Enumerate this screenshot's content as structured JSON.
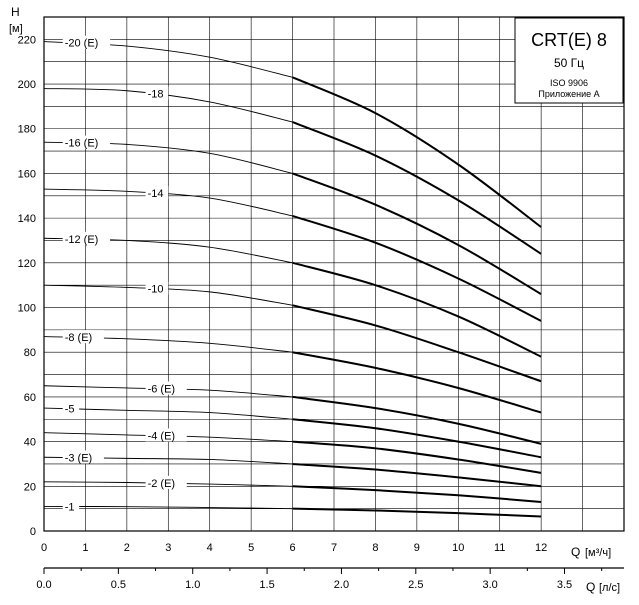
{
  "chart_data": {
    "type": "line",
    "title": "CRT(E) 8",
    "subtitle": "50 Гц",
    "notes": [
      "ISO 9906",
      "Приложение А"
    ],
    "ylabel": "H",
    "yunit": "[м]",
    "xlabel": "Q",
    "xunit": "[м³/ч]",
    "x2label": "Q",
    "x2unit": "[л/с]",
    "xlim": [
      0,
      14
    ],
    "ylim": [
      0,
      230
    ],
    "x2lim": [
      0.0,
      3.9
    ],
    "grid": true,
    "x_ticks": [
      "0",
      "1",
      "2",
      "3",
      "4",
      "5",
      "6",
      "7",
      "8",
      "9",
      "10",
      "11",
      "12"
    ],
    "y_ticks": [
      "0",
      "20",
      "40",
      "60",
      "80",
      "100",
      "120",
      "140",
      "160",
      "180",
      "200",
      "220"
    ],
    "x2_ticks": [
      "0.0",
      "0.5",
      "1.0",
      "1.5",
      "2.0",
      "2.5",
      "3.0",
      "3.5"
    ],
    "operating_range_start": 6,
    "series": [
      {
        "name": "-20 (E)",
        "label_at": 0.5,
        "x": [
          0,
          2,
          4,
          6,
          8,
          10,
          12
        ],
        "y": [
          219,
          217,
          212,
          203,
          187,
          164,
          136
        ]
      },
      {
        "name": "-18",
        "label_at": 2.5,
        "x": [
          0,
          2,
          4,
          6,
          8,
          10,
          12
        ],
        "y": [
          198,
          197,
          192,
          183,
          168,
          148,
          124
        ]
      },
      {
        "name": "-16 (E)",
        "label_at": 0.5,
        "x": [
          0,
          2,
          4,
          6,
          8,
          10,
          12
        ],
        "y": [
          174,
          173,
          169,
          160,
          146,
          128,
          106
        ]
      },
      {
        "name": "-14",
        "label_at": 2.5,
        "x": [
          0,
          2,
          4,
          6,
          8,
          10,
          12
        ],
        "y": [
          153,
          152,
          149,
          141,
          129,
          113,
          94
        ]
      },
      {
        "name": "-12 (E)",
        "label_at": 0.5,
        "x": [
          0,
          2,
          4,
          6,
          8,
          10,
          12
        ],
        "y": [
          131,
          130,
          127,
          120,
          110,
          96,
          78
        ]
      },
      {
        "name": "-10",
        "label_at": 2.5,
        "x": [
          0,
          2,
          4,
          6,
          8,
          10,
          12
        ],
        "y": [
          110,
          109,
          107,
          101,
          92,
          80,
          67
        ]
      },
      {
        "name": "-8 (E)",
        "label_at": 0.5,
        "x": [
          0,
          2,
          4,
          6,
          8,
          10,
          12
        ],
        "y": [
          87,
          86,
          84,
          80,
          73,
          64,
          53
        ]
      },
      {
        "name": "-6 (E)",
        "label_at": 2.5,
        "x": [
          0,
          2,
          4,
          6,
          8,
          10,
          12
        ],
        "y": [
          65,
          64,
          63,
          60,
          55,
          48,
          39
        ]
      },
      {
        "name": "-5",
        "label_at": 0.5,
        "x": [
          0,
          2,
          4,
          6,
          8,
          10,
          12
        ],
        "y": [
          55,
          54,
          53,
          50,
          46,
          40,
          33
        ]
      },
      {
        "name": "-4 (E)",
        "label_at": 2.5,
        "x": [
          0,
          2,
          4,
          6,
          8,
          10,
          12
        ],
        "y": [
          44,
          43,
          42,
          40,
          37,
          32,
          26
        ]
      },
      {
        "name": "-3 (E)",
        "label_at": 0.5,
        "x": [
          0,
          2,
          4,
          6,
          8,
          10,
          12
        ],
        "y": [
          33,
          32.5,
          32,
          30,
          27.5,
          24,
          20
        ]
      },
      {
        "name": "-2 (E)",
        "label_at": 2.5,
        "x": [
          0,
          2,
          4,
          6,
          8,
          10,
          12
        ],
        "y": [
          22,
          21.7,
          21,
          20,
          18.3,
          16,
          13
        ]
      },
      {
        "name": "-1",
        "label_at": 0.5,
        "x": [
          0,
          2,
          4,
          6,
          8,
          10,
          12
        ],
        "y": [
          11,
          10.9,
          10.5,
          10,
          9.2,
          8,
          6.5
        ]
      }
    ]
  }
}
